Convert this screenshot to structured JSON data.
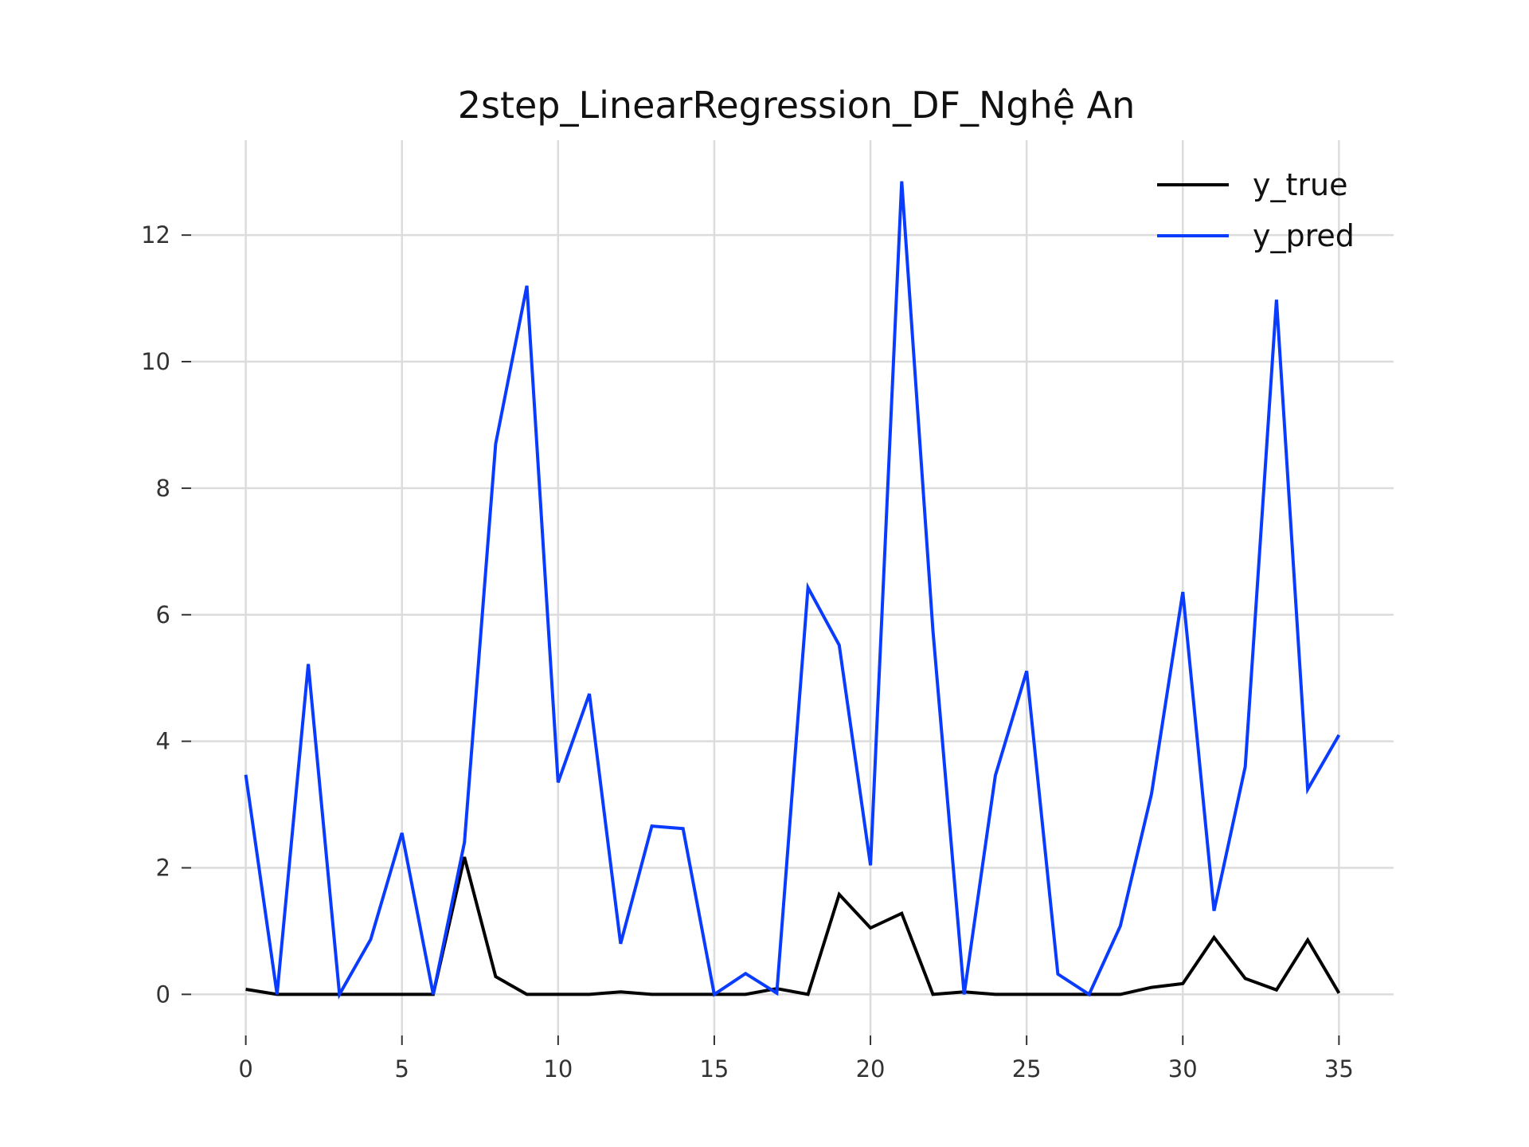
{
  "chart_data": {
    "type": "line",
    "title": "2step_LinearRegression_DF_Nghệ An",
    "xlabel": "",
    "ylabel": "",
    "xlim": [
      -1.75,
      36.75
    ],
    "ylim": [
      -0.65,
      13.5
    ],
    "xticks": [
      0,
      5,
      10,
      15,
      20,
      25,
      30,
      35
    ],
    "yticks": [
      0,
      2,
      4,
      6,
      8,
      10,
      12
    ],
    "grid": true,
    "legend_position": "top-right",
    "x": [
      0,
      1,
      2,
      3,
      4,
      5,
      6,
      7,
      8,
      9,
      10,
      11,
      12,
      13,
      14,
      15,
      16,
      17,
      18,
      19,
      20,
      21,
      22,
      23,
      24,
      25,
      26,
      27,
      28,
      29,
      30,
      31,
      32,
      33,
      34,
      35
    ],
    "series": [
      {
        "name": "y_true",
        "color": "#000000",
        "values": [
          0.08,
          0,
          0,
          0,
          0,
          0,
          0,
          2.17,
          0.28,
          0,
          0,
          0,
          0.04,
          0,
          0,
          0,
          0,
          0.09,
          0,
          1.58,
          1.05,
          1.28,
          0,
          0.04,
          0,
          0,
          0,
          0,
          0,
          0.11,
          0.17,
          0.9,
          0.25,
          0.07,
          0.86,
          0.02
        ]
      },
      {
        "name": "y_pred",
        "color": "#0a3cff",
        "values": [
          3.47,
          0,
          5.22,
          0,
          0.87,
          2.55,
          0,
          2.4,
          8.7,
          11.2,
          3.35,
          4.75,
          0.8,
          2.66,
          2.62,
          0,
          0.33,
          0.02,
          6.43,
          5.52,
          2.04,
          12.85,
          5.75,
          0,
          3.46,
          5.11,
          0.32,
          0,
          1.08,
          3.17,
          6.36,
          1.32,
          3.6,
          10.98,
          3.24,
          4.1
        ]
      }
    ]
  }
}
